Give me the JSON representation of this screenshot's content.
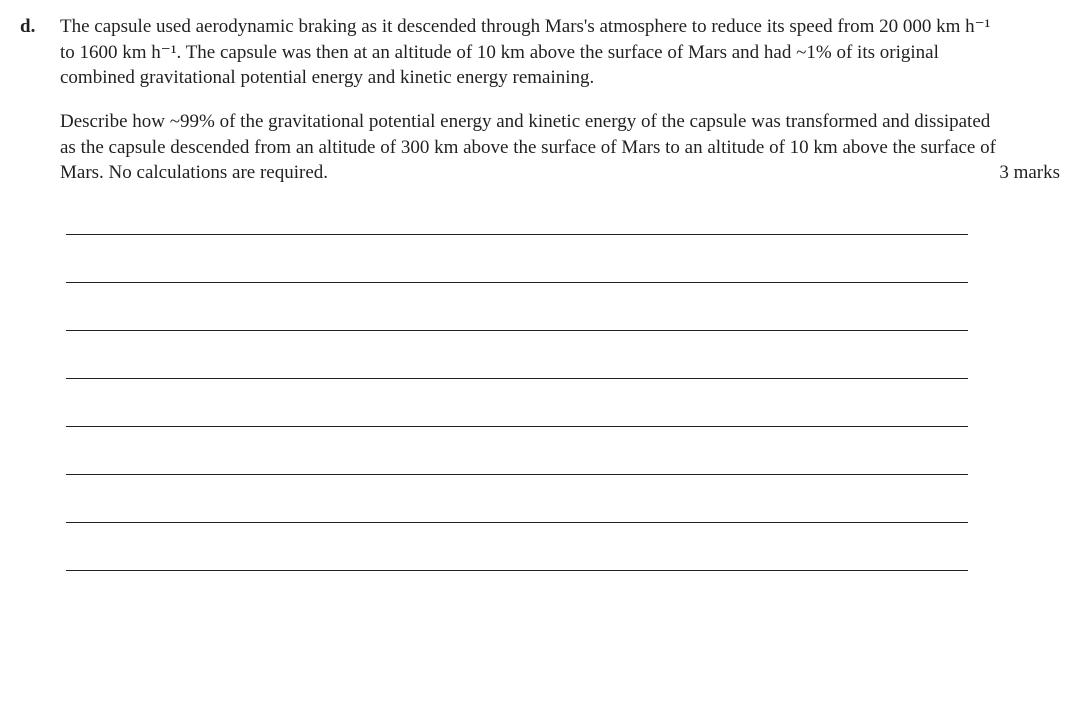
{
  "question": {
    "label": "d.",
    "para1_html": "The capsule used aerodynamic braking as it descended through Mars's atmosphere to reduce its speed from 20 000 km h⁻¹ to 1600 km h⁻¹.  The capsule was then at an altitude of 10 km above the surface of Mars and had ~1% of its original combined gravitational potential energy and kinetic energy remaining.",
    "para2_html": "Describe how ~99% of the gravitational potential energy and kinetic energy of the capsule was transformed and dissipated as the capsule descended from an altitude of 300 km above the surface of Mars to an altitude of 10 km above the surface of Mars. No calculations are required.",
    "marks": "3 marks",
    "answer_line_count": 8
  },
  "style": {
    "text_color": "#231f20",
    "line_color": "#231f20",
    "background": "#ffffff",
    "font_family": "Times New Roman"
  }
}
